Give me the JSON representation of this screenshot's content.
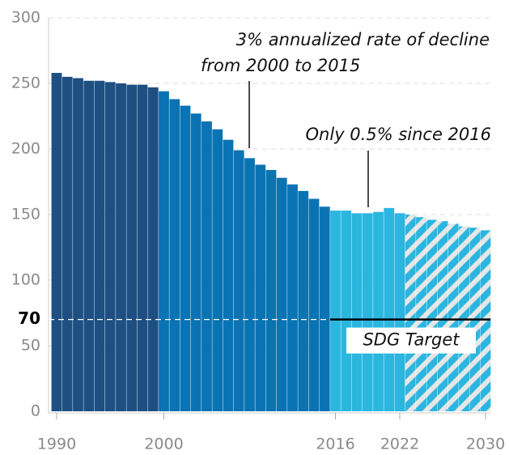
{
  "chart_data": {
    "type": "bar",
    "categories": [
      "1990",
      null,
      null,
      null,
      null,
      null,
      null,
      null,
      null,
      null,
      "2000",
      null,
      null,
      null,
      null,
      null,
      null,
      null,
      null,
      null,
      null,
      null,
      null,
      null,
      null,
      null,
      "2016",
      null,
      null,
      null,
      null,
      null,
      "2022",
      null,
      null,
      null,
      null,
      null,
      null,
      null,
      "2030"
    ],
    "values": [
      258,
      255,
      254,
      252,
      252,
      251,
      250,
      249,
      249,
      247,
      244,
      238,
      233,
      227,
      221,
      215,
      207,
      199,
      193,
      188,
      184,
      178,
      173,
      168,
      162,
      156,
      153,
      153,
      151,
      151,
      152,
      155,
      151,
      150,
      148,
      146,
      145,
      143,
      141,
      140,
      138
    ],
    "colors": [
      "#1d4f82",
      "#1d4f82",
      "#1d4f82",
      "#1d4f82",
      "#1d4f82",
      "#1d4f82",
      "#1d4f82",
      "#1d4f82",
      "#1d4f82",
      "#1d4f82",
      "#0a73b3",
      "#0a73b3",
      "#0a73b3",
      "#0a73b3",
      "#0a73b3",
      "#0a73b3",
      "#0a73b3",
      "#0a73b3",
      "#0a73b3",
      "#0a73b3",
      "#0a73b3",
      "#0a73b3",
      "#0a73b3",
      "#0a73b3",
      "#0a73b3",
      "#0a73b3",
      "#2bb6e0",
      "#2bb6e0",
      "#2bb6e0",
      "#2bb6e0",
      "#2bb6e0",
      "#2bb6e0",
      "#2bb6e0",
      "hatched",
      "hatched",
      "hatched",
      "hatched",
      "hatched",
      "hatched",
      "hatched",
      "hatched"
    ],
    "ylim": [
      0,
      300
    ],
    "yticks": [
      0,
      50,
      100,
      150,
      200,
      250,
      300
    ],
    "grid": true,
    "target": {
      "value": 70,
      "label": "SDG Target"
    },
    "annotations": [
      {
        "lines": [
          "3% annualized rate of decline",
          "from 2000 to 2015"
        ]
      },
      {
        "lines": [
          "Only 0.5% since 2016"
        ]
      }
    ]
  }
}
